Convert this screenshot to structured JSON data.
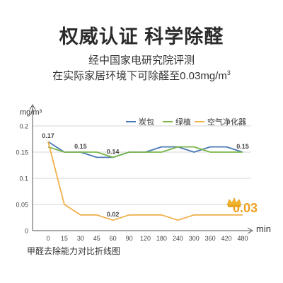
{
  "header": {
    "title": "权威认证  科学除醛",
    "subtitle_line1": "经中国家电研究院评测",
    "subtitle_line2_main": "在实际家居环境下可除醛至0.03mg/m",
    "subtitle_line2_sup": "3"
  },
  "caption": "甲醛去除能力对比折线图",
  "chart_data": {
    "type": "line",
    "ylabel": "mg/m³",
    "xlabel": "min",
    "categories": [
      "0",
      "15",
      "30",
      "45",
      "60",
      "90",
      "120",
      "180",
      "240",
      "300",
      "360",
      "420",
      "480"
    ],
    "ylim": [
      0,
      0.2
    ],
    "yticks": [
      "0",
      "0.05",
      "0.1",
      "0.15",
      "0.2"
    ],
    "grid": true,
    "legend_position": "top-right",
    "series": [
      {
        "name": "炭包",
        "color": "#4a78b5",
        "values": [
          0.17,
          0.15,
          0.15,
          0.14,
          0.14,
          0.15,
          0.15,
          0.16,
          0.16,
          0.15,
          0.16,
          0.16,
          0.15
        ]
      },
      {
        "name": "绿植",
        "color": "#7ab648",
        "values": [
          0.16,
          0.15,
          0.15,
          0.15,
          0.14,
          0.15,
          0.15,
          0.15,
          0.16,
          0.16,
          0.15,
          0.15,
          0.15
        ]
      },
      {
        "name": "空气净化器",
        "color": "#f0b04a",
        "values": [
          0.17,
          0.05,
          0.03,
          0.03,
          0.02,
          0.03,
          0.03,
          0.03,
          0.02,
          0.03,
          0.03,
          0.03,
          0.03
        ]
      }
    ],
    "annotations": [
      {
        "text": "0.17",
        "series": 0,
        "index": 0
      },
      {
        "text": "0.15",
        "series": 0,
        "index": 2
      },
      {
        "text": "0.14",
        "series": 0,
        "index": 4
      },
      {
        "text": "0.02",
        "series": 2,
        "index": 4
      },
      {
        "text": "0.15",
        "series": 0,
        "index": 12
      }
    ],
    "highlight": {
      "text": "0.03",
      "color": "#f0a020",
      "series": 2,
      "index": 12
    }
  }
}
